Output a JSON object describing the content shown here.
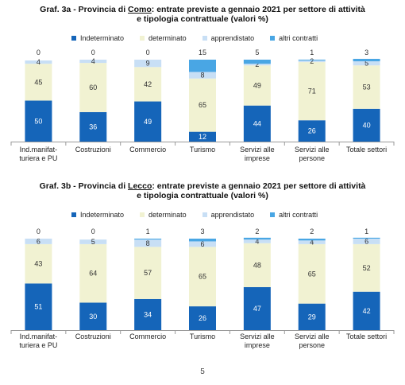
{
  "page_number": "5",
  "legend_colors": {
    "Indeterminato": "#1565b9",
    "determinato": "#f1f2d2",
    "apprendistato": "#c8dff5",
    "altri contratti": "#49a6e4"
  },
  "chart_a": {
    "title_prefix": "Graf. 3a - Provincia di ",
    "title_place": "Como",
    "title_suffix": ": entrate previste a gennaio 2021 per settore di attività",
    "title_line2": "e tipologia contrattuale (valori %)"
  },
  "chart_b": {
    "title_prefix": "Graf. 3b - Provincia di ",
    "title_place": "Lecco",
    "title_suffix": ": entrate previste a gennaio 2021 per settore di attività",
    "title_line2": "e tipologia contrattuale (valori %)"
  },
  "chart_data": [
    {
      "type": "bar",
      "stacked": true,
      "categories": [
        [
          "Ind.manifat-",
          "turiera e PU"
        ],
        [
          "Costruzioni"
        ],
        [
          "Commercio"
        ],
        [
          "Turismo"
        ],
        [
          "Servizi alle",
          "imprese"
        ],
        [
          "Servizi alle",
          "persone"
        ],
        [
          "Totale settori"
        ]
      ],
      "series": [
        {
          "name": "Indeterminato",
          "values": [
            50,
            36,
            49,
            12,
            44,
            26,
            40
          ]
        },
        {
          "name": "determinato",
          "values": [
            45,
            60,
            42,
            65,
            49,
            71,
            53
          ]
        },
        {
          "name": "apprendistato",
          "values": [
            4,
            4,
            9,
            8,
            2,
            2,
            5
          ]
        },
        {
          "name": "altri contratti",
          "values": [
            0,
            0,
            0,
            15,
            5,
            1,
            3
          ]
        }
      ],
      "title": "Graf. 3a - Provincia di Como: entrate previste a gennaio 2021 per settore di attività e tipologia contrattuale (valori %)",
      "ylim": [
        0,
        100
      ],
      "legend_position": "top"
    },
    {
      "type": "bar",
      "stacked": true,
      "categories": [
        [
          "Ind.manifat-",
          "turiera e PU"
        ],
        [
          "Costruzioni"
        ],
        [
          "Commercio"
        ],
        [
          "Turismo"
        ],
        [
          "Servizi alle",
          "imprese"
        ],
        [
          "Servizi alle",
          "persone"
        ],
        [
          "Totale settori"
        ]
      ],
      "series": [
        {
          "name": "Indeterminato",
          "values": [
            51,
            30,
            34,
            26,
            47,
            29,
            42
          ]
        },
        {
          "name": "determinato",
          "values": [
            43,
            64,
            57,
            65,
            48,
            65,
            52
          ]
        },
        {
          "name": "apprendistato",
          "values": [
            6,
            5,
            8,
            6,
            4,
            4,
            6
          ]
        },
        {
          "name": "altri contratti",
          "values": [
            0,
            0,
            1,
            3,
            2,
            2,
            1
          ]
        }
      ],
      "title": "Graf. 3b - Provincia di Lecco: entrate previste a gennaio 2021 per settore di attività e tipologia contrattuale (valori %)",
      "ylim": [
        0,
        100
      ],
      "legend_position": "top"
    }
  ]
}
